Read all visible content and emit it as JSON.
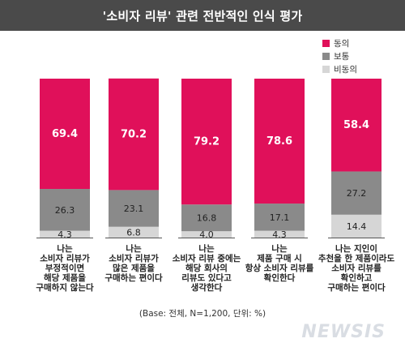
{
  "header": {
    "title": "'소비자 리뷰' 관련 전반적인 인식 평가"
  },
  "footnote": "(Base: 전체, N=1,200, 단위: %)",
  "watermark": "NEWSIS",
  "colors": {
    "agree": "#e0105a",
    "neutral": "#8a8a8a",
    "disagree": "#d6d6d6"
  },
  "chart_data": {
    "type": "bar",
    "stacked": true,
    "orientation": "vertical",
    "categories": [
      [
        "나는",
        "소비자 리뷰가",
        "부정적이면",
        "해당 제품을",
        "구매하지 않는다"
      ],
      [
        "나는",
        "소비자 리뷰가",
        "많은 제품을",
        "구매하는 편이다"
      ],
      [
        "나는",
        "소비자 리뷰 중에는",
        "해당 회사의",
        "리뷰도 있다고",
        "생각한다"
      ],
      [
        "나는",
        "제품 구매 시",
        "항상 소비자 리뷰를",
        "확인한다"
      ],
      [
        "나는 지인이",
        "추천을 한 제품이라도",
        "소비자 리뷰를",
        "확인하고",
        "구매하는 편이다"
      ]
    ],
    "series": [
      {
        "name": "비동의",
        "values": [
          4.3,
          6.8,
          4.0,
          4.3,
          14.4
        ],
        "labels": [
          "4.3",
          "6.8",
          "4.0",
          "4.3",
          "14.4"
        ]
      },
      {
        "name": "보통",
        "values": [
          26.3,
          23.1,
          16.8,
          17.1,
          27.2
        ],
        "labels": [
          "26.3",
          "23.1",
          "16.8",
          "17.1",
          "27.2"
        ]
      },
      {
        "name": "동의",
        "values": [
          69.4,
          70.2,
          79.2,
          78.6,
          58.4
        ],
        "labels": [
          "69.4",
          "70.2",
          "79.2",
          "78.6",
          "58.4"
        ]
      }
    ],
    "legend": {
      "position": "top-right",
      "items": [
        "동의",
        "보통",
        "비동의"
      ]
    },
    "ylim": [
      0,
      100
    ],
    "grid": false
  }
}
